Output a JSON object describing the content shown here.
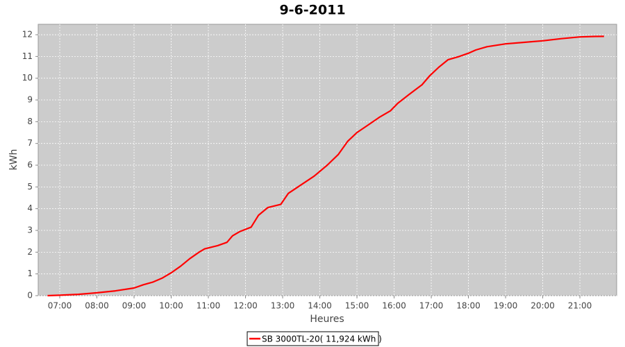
{
  "chart_data": {
    "type": "line",
    "title": "9-6-2011",
    "xlabel": "Heures",
    "ylabel": "kWh",
    "x": [
      6.67,
      7.0,
      7.5,
      8.0,
      8.5,
      9.0,
      9.25,
      9.5,
      9.75,
      10.0,
      10.25,
      10.5,
      10.75,
      10.9,
      11.25,
      11.5,
      11.65,
      11.85,
      12.15,
      12.35,
      12.6,
      12.95,
      13.15,
      13.5,
      13.85,
      14.2,
      14.5,
      14.75,
      15.0,
      15.3,
      15.6,
      15.9,
      16.1,
      16.4,
      16.75,
      16.95,
      17.2,
      17.45,
      17.75,
      18.0,
      18.2,
      18.5,
      19.0,
      19.5,
      20.0,
      20.5,
      21.0,
      21.4,
      21.65
    ],
    "series": [
      {
        "name": "SB 3000TL-20( 11,924 kWh )",
        "color": "#ff0000",
        "values": [
          0,
          0.02,
          0.06,
          0.13,
          0.22,
          0.35,
          0.5,
          0.62,
          0.8,
          1.05,
          1.35,
          1.7,
          2.0,
          2.15,
          2.3,
          2.45,
          2.75,
          2.95,
          3.15,
          3.7,
          4.05,
          4.2,
          4.7,
          5.1,
          5.5,
          6.0,
          6.5,
          7.1,
          7.5,
          7.85,
          8.2,
          8.5,
          8.85,
          9.25,
          9.7,
          10.1,
          10.5,
          10.85,
          11.0,
          11.15,
          11.3,
          11.45,
          11.58,
          11.65,
          11.72,
          11.82,
          11.9,
          11.92,
          11.924
        ]
      }
    ],
    "xlim": [
      6.42,
      21.99
    ],
    "xticks": [
      {
        "value": 7,
        "label": "07:00"
      },
      {
        "value": 8,
        "label": "08:00"
      },
      {
        "value": 9,
        "label": "09:00"
      },
      {
        "value": 10,
        "label": "10:00"
      },
      {
        "value": 11,
        "label": "11:00"
      },
      {
        "value": 12,
        "label": "12:00"
      },
      {
        "value": 13,
        "label": "13:00"
      },
      {
        "value": 14,
        "label": "14:00"
      },
      {
        "value": 15,
        "label": "15:00"
      },
      {
        "value": 16,
        "label": "16:00"
      },
      {
        "value": 17,
        "label": "17:00"
      },
      {
        "value": 18,
        "label": "18:00"
      },
      {
        "value": 19,
        "label": "19:00"
      },
      {
        "value": 20,
        "label": "20:00"
      },
      {
        "value": 21,
        "label": "21:00"
      }
    ],
    "ylim": [
      0,
      12.48
    ],
    "yticks": [
      0,
      1,
      2,
      3,
      4,
      5,
      6,
      7,
      8,
      9,
      10,
      11,
      12
    ],
    "grid": true,
    "legend": "bottom"
  }
}
